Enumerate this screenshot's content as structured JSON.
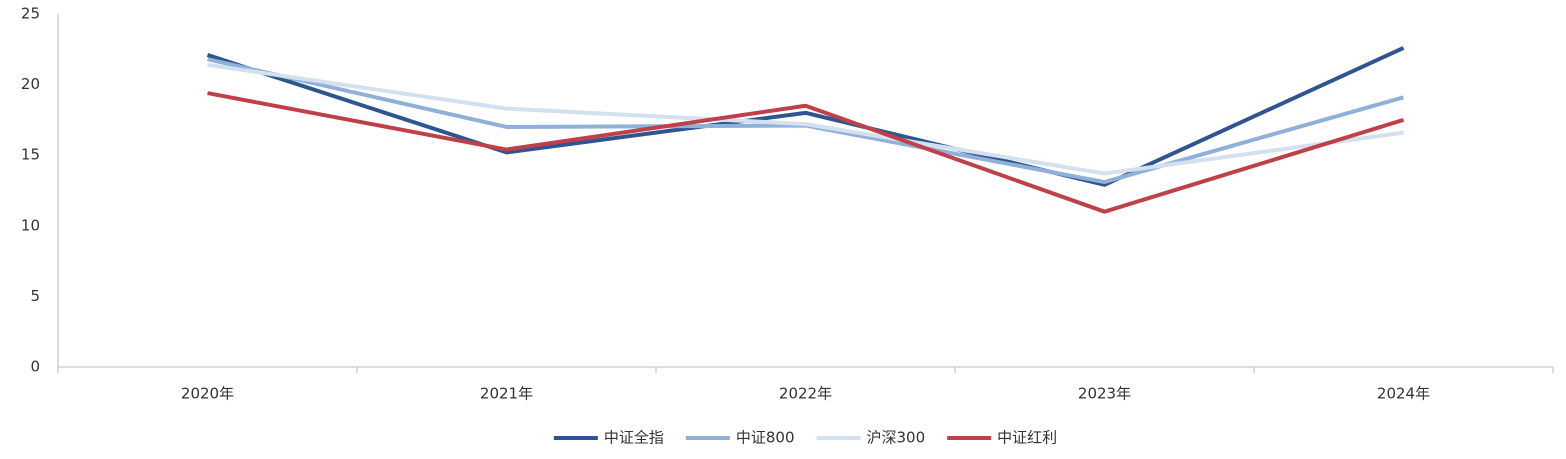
{
  "chart_data": {
    "type": "line",
    "categories": [
      "2020年",
      "2021年",
      "2022年",
      "2023年",
      "2024年"
    ],
    "series": [
      {
        "name": "中证全指",
        "color": "#2e5590",
        "values": [
          22.1,
          15.2,
          18.0,
          12.9,
          22.6
        ]
      },
      {
        "name": "中证800",
        "color": "#8fb0d8",
        "values": [
          21.8,
          17.0,
          17.1,
          13.1,
          19.1
        ]
      },
      {
        "name": "沪深300",
        "color": "#d3e0f0",
        "values": [
          21.4,
          18.3,
          17.2,
          13.7,
          16.6
        ]
      },
      {
        "name": "中证红利",
        "color": "#c0404a",
        "values": [
          19.4,
          15.4,
          18.5,
          11.0,
          17.5
        ]
      }
    ],
    "ylim": [
      0,
      25
    ],
    "yticks": [
      0,
      5,
      10,
      15,
      20,
      25
    ],
    "grid": false,
    "legend": "bottom"
  }
}
